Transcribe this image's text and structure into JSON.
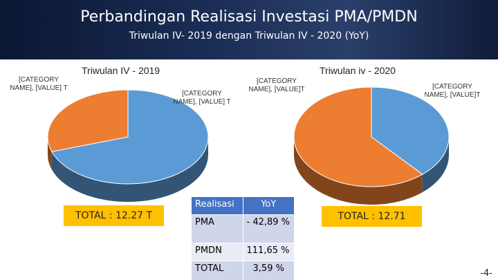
{
  "header": {
    "title": "Perbandingan Realisasi Investasi PMA/PMDN",
    "subtitle": "Triwulan IV- 2019 dengan Triwulan IV - 2020 (YoY)"
  },
  "chart_data": [
    {
      "type": "pie",
      "title": "Triwulan IV - 2019",
      "values": [
        8.58,
        3.69
      ],
      "colors": [
        "#5b9bd5",
        "#ed7d31"
      ],
      "labels": [
        "[CATEGORY NAME], [VALUE] T",
        "[CATEGORY NAME], [VALUE] T"
      ],
      "total_label": "TOTAL : 12.27 T"
    },
    {
      "type": "pie",
      "title": "Triwulan iv - 2020",
      "values": [
        4.9,
        7.81
      ],
      "colors": [
        "#5b9bd5",
        "#ed7d31"
      ],
      "labels": [
        "[CATEGORY NAME], [VALUE]T",
        "[CATEGORY NAME], [VALUE]T"
      ],
      "total_label": "TOTAL : 12.71"
    }
  ],
  "table": {
    "header": [
      "Realisasi",
      "YoY"
    ],
    "rows": [
      [
        "PMA",
        "- 42,89 %"
      ],
      [
        "PMDN",
        "111,65 %"
      ],
      [
        "TOTAL",
        "3,59 %"
      ]
    ]
  },
  "page_number": "-4-"
}
